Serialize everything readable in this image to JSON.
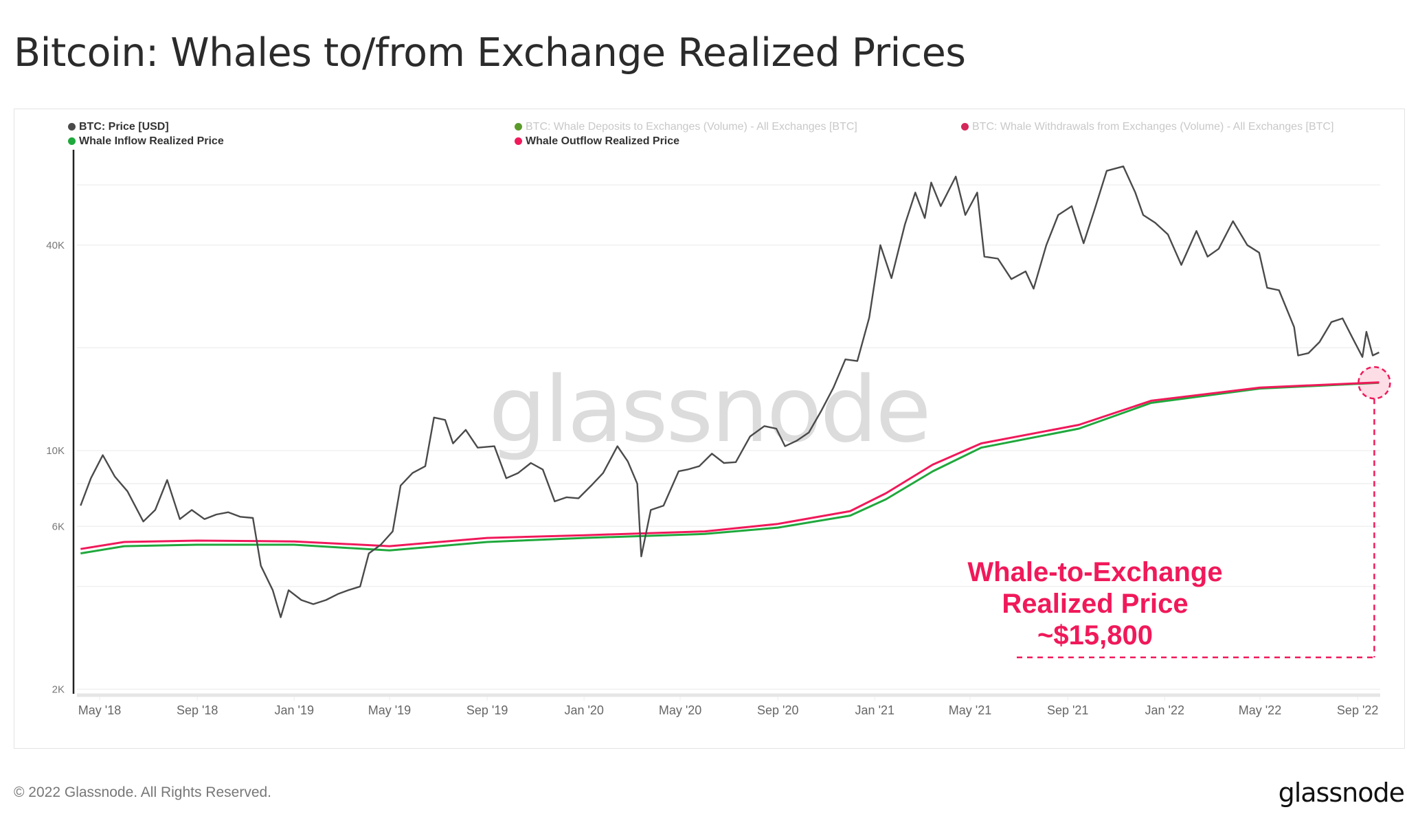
{
  "title": "Bitcoin: Whales to/from Exchange Realized Prices",
  "footer": {
    "copyright": "© 2022 Glassnode. All Rights Reserved.",
    "logo": "glassnode"
  },
  "watermark": "glassnode",
  "legend": [
    {
      "label": "BTC: Price [USD]",
      "color": "#4a4a4a",
      "active": true
    },
    {
      "label": "Whale Inflow Realized Price",
      "color": "#1fa83c",
      "active": true
    },
    {
      "label": "BTC: Whale Deposits to Exchanges (Volume) - All Exchanges [BTC]",
      "color": "#5a9a2a",
      "active": false
    },
    {
      "label": "Whale Outflow Realized Price",
      "color": "#f0195a",
      "active": true
    },
    {
      "label": "BTC: Whale Withdrawals from Exchanges (Volume) - All Exchanges [BTC]",
      "color": "#d4285a",
      "active": false
    }
  ],
  "annotation": {
    "lines": [
      "Whale-to-Exchange",
      "Realized Price",
      "~$15,800"
    ],
    "color": "#f0195a",
    "value": 15800
  },
  "chart_data": {
    "type": "line",
    "title": "Bitcoin: Whales to/from Exchange Realized Prices",
    "y_scale": "log",
    "ylim": [
      1900,
      80000
    ],
    "y_ticks": [
      {
        "value": 40000,
        "label": "40K"
      },
      {
        "value": 10000,
        "label": "10K"
      },
      {
        "value": 6000,
        "label": "6K"
      },
      {
        "value": 2000,
        "label": "2K"
      }
    ],
    "y_gridlines": [
      60000,
      40000,
      20000,
      10000,
      8000,
      6000,
      4000,
      2000
    ],
    "x_ticks": [
      {
        "date": "2018-05-01",
        "label": "May '18"
      },
      {
        "date": "2018-09-01",
        "label": "Sep '18"
      },
      {
        "date": "2019-01-01",
        "label": "Jan '19"
      },
      {
        "date": "2019-05-01",
        "label": "May '19"
      },
      {
        "date": "2019-09-01",
        "label": "Sep '19"
      },
      {
        "date": "2020-01-01",
        "label": "Jan '20"
      },
      {
        "date": "2020-05-01",
        "label": "May '20"
      },
      {
        "date": "2020-09-01",
        "label": "Sep '20"
      },
      {
        "date": "2021-01-01",
        "label": "Jan '21"
      },
      {
        "date": "2021-05-01",
        "label": "May '21"
      },
      {
        "date": "2021-09-01",
        "label": "Sep '21"
      },
      {
        "date": "2022-01-01",
        "label": "Jan '22"
      },
      {
        "date": "2022-05-01",
        "label": "May '22"
      },
      {
        "date": "2022-09-01",
        "label": "Sep '22"
      }
    ],
    "grid": true,
    "legend_position": "top",
    "series": [
      {
        "name": "BTC: Price [USD]",
        "color": "#4a4a4a",
        "points": [
          [
            "2018-04-07",
            6900
          ],
          [
            "2018-04-20",
            8300
          ],
          [
            "2018-05-05",
            9700
          ],
          [
            "2018-05-20",
            8400
          ],
          [
            "2018-06-05",
            7600
          ],
          [
            "2018-06-25",
            6200
          ],
          [
            "2018-07-10",
            6700
          ],
          [
            "2018-07-25",
            8200
          ],
          [
            "2018-08-10",
            6300
          ],
          [
            "2018-08-25",
            6700
          ],
          [
            "2018-09-10",
            6300
          ],
          [
            "2018-09-25",
            6500
          ],
          [
            "2018-10-10",
            6600
          ],
          [
            "2018-10-25",
            6400
          ],
          [
            "2018-11-10",
            6350
          ],
          [
            "2018-11-20",
            4600
          ],
          [
            "2018-12-05",
            3900
          ],
          [
            "2018-12-15",
            3250
          ],
          [
            "2018-12-25",
            3900
          ],
          [
            "2019-01-10",
            3650
          ],
          [
            "2019-01-25",
            3550
          ],
          [
            "2019-02-10",
            3650
          ],
          [
            "2019-02-25",
            3800
          ],
          [
            "2019-03-10",
            3900
          ],
          [
            "2019-03-25",
            4000
          ],
          [
            "2019-04-05",
            5000
          ],
          [
            "2019-04-20",
            5300
          ],
          [
            "2019-05-05",
            5800
          ],
          [
            "2019-05-15",
            7900
          ],
          [
            "2019-05-30",
            8600
          ],
          [
            "2019-06-15",
            9000
          ],
          [
            "2019-06-26",
            12500
          ],
          [
            "2019-07-10",
            12300
          ],
          [
            "2019-07-20",
            10500
          ],
          [
            "2019-08-05",
            11500
          ],
          [
            "2019-08-20",
            10200
          ],
          [
            "2019-09-10",
            10300
          ],
          [
            "2019-09-25",
            8300
          ],
          [
            "2019-10-10",
            8600
          ],
          [
            "2019-10-26",
            9200
          ],
          [
            "2019-11-10",
            8800
          ],
          [
            "2019-11-25",
            7100
          ],
          [
            "2019-12-10",
            7300
          ],
          [
            "2019-12-25",
            7250
          ],
          [
            "2020-01-10",
            7900
          ],
          [
            "2020-01-25",
            8600
          ],
          [
            "2020-02-12",
            10300
          ],
          [
            "2020-02-25",
            9300
          ],
          [
            "2020-03-08",
            8000
          ],
          [
            "2020-03-13",
            4900
          ],
          [
            "2020-03-25",
            6700
          ],
          [
            "2020-04-10",
            6900
          ],
          [
            "2020-04-29",
            8700
          ],
          [
            "2020-05-10",
            8800
          ],
          [
            "2020-05-25",
            9000
          ],
          [
            "2020-06-10",
            9800
          ],
          [
            "2020-06-25",
            9200
          ],
          [
            "2020-07-10",
            9250
          ],
          [
            "2020-07-28",
            11000
          ],
          [
            "2020-08-15",
            11800
          ],
          [
            "2020-08-30",
            11600
          ],
          [
            "2020-09-10",
            10300
          ],
          [
            "2020-09-25",
            10700
          ],
          [
            "2020-10-10",
            11300
          ],
          [
            "2020-10-25",
            13000
          ],
          [
            "2020-11-10",
            15300
          ],
          [
            "2020-11-25",
            18500
          ],
          [
            "2020-12-10",
            18300
          ],
          [
            "2020-12-25",
            24500
          ],
          [
            "2021-01-08",
            40000
          ],
          [
            "2021-01-22",
            32000
          ],
          [
            "2021-02-08",
            46000
          ],
          [
            "2021-02-21",
            57000
          ],
          [
            "2021-03-05",
            48000
          ],
          [
            "2021-03-13",
            61000
          ],
          [
            "2021-03-25",
            52000
          ],
          [
            "2021-04-13",
            63500
          ],
          [
            "2021-04-25",
            49000
          ],
          [
            "2021-05-10",
            57000
          ],
          [
            "2021-05-19",
            37000
          ],
          [
            "2021-06-05",
            36500
          ],
          [
            "2021-06-22",
            31800
          ],
          [
            "2021-07-10",
            33500
          ],
          [
            "2021-07-20",
            29800
          ],
          [
            "2021-08-05",
            40000
          ],
          [
            "2021-08-20",
            49000
          ],
          [
            "2021-09-06",
            52000
          ],
          [
            "2021-09-21",
            40500
          ],
          [
            "2021-10-05",
            51000
          ],
          [
            "2021-10-20",
            66000
          ],
          [
            "2021-11-10",
            68000
          ],
          [
            "2021-11-25",
            57000
          ],
          [
            "2021-12-05",
            49000
          ],
          [
            "2021-12-20",
            46500
          ],
          [
            "2022-01-05",
            43000
          ],
          [
            "2022-01-22",
            35000
          ],
          [
            "2022-02-10",
            44000
          ],
          [
            "2022-02-24",
            37000
          ],
          [
            "2022-03-10",
            39000
          ],
          [
            "2022-03-28",
            47000
          ],
          [
            "2022-04-15",
            40000
          ],
          [
            "2022-04-30",
            38000
          ],
          [
            "2022-05-10",
            30000
          ],
          [
            "2022-05-25",
            29500
          ],
          [
            "2022-06-13",
            23000
          ],
          [
            "2022-06-18",
            19000
          ],
          [
            "2022-07-01",
            19300
          ],
          [
            "2022-07-15",
            20800
          ],
          [
            "2022-07-30",
            23800
          ],
          [
            "2022-08-13",
            24400
          ],
          [
            "2022-08-25",
            21500
          ],
          [
            "2022-09-07",
            18800
          ],
          [
            "2022-09-12",
            22300
          ],
          [
            "2022-09-20",
            19000
          ],
          [
            "2022-09-28",
            19400
          ]
        ]
      },
      {
        "name": "Whale Inflow Realized Price",
        "color": "#1fa83c",
        "points": [
          [
            "2018-04-07",
            5000
          ],
          [
            "2018-06-01",
            5250
          ],
          [
            "2018-09-01",
            5300
          ],
          [
            "2019-01-01",
            5300
          ],
          [
            "2019-05-01",
            5100
          ],
          [
            "2019-09-01",
            5400
          ],
          [
            "2020-01-01",
            5550
          ],
          [
            "2020-06-01",
            5700
          ],
          [
            "2020-09-01",
            5950
          ],
          [
            "2020-12-01",
            6450
          ],
          [
            "2021-01-15",
            7200
          ],
          [
            "2021-03-15",
            8700
          ],
          [
            "2021-05-15",
            10200
          ],
          [
            "2021-09-15",
            11600
          ],
          [
            "2021-12-15",
            13800
          ],
          [
            "2022-05-01",
            15200
          ],
          [
            "2022-09-28",
            15800
          ]
        ]
      },
      {
        "name": "Whale Outflow Realized Price",
        "color": "#f0195a",
        "points": [
          [
            "2018-04-07",
            5150
          ],
          [
            "2018-06-01",
            5400
          ],
          [
            "2018-09-01",
            5450
          ],
          [
            "2019-01-01",
            5420
          ],
          [
            "2019-05-01",
            5250
          ],
          [
            "2019-09-01",
            5550
          ],
          [
            "2020-01-01",
            5650
          ],
          [
            "2020-06-01",
            5800
          ],
          [
            "2020-09-01",
            6100
          ],
          [
            "2020-12-01",
            6650
          ],
          [
            "2021-01-15",
            7500
          ],
          [
            "2021-03-15",
            9100
          ],
          [
            "2021-05-15",
            10500
          ],
          [
            "2021-09-15",
            11900
          ],
          [
            "2021-12-15",
            14000
          ],
          [
            "2022-05-01",
            15300
          ],
          [
            "2022-09-28",
            15850
          ]
        ]
      }
    ]
  }
}
